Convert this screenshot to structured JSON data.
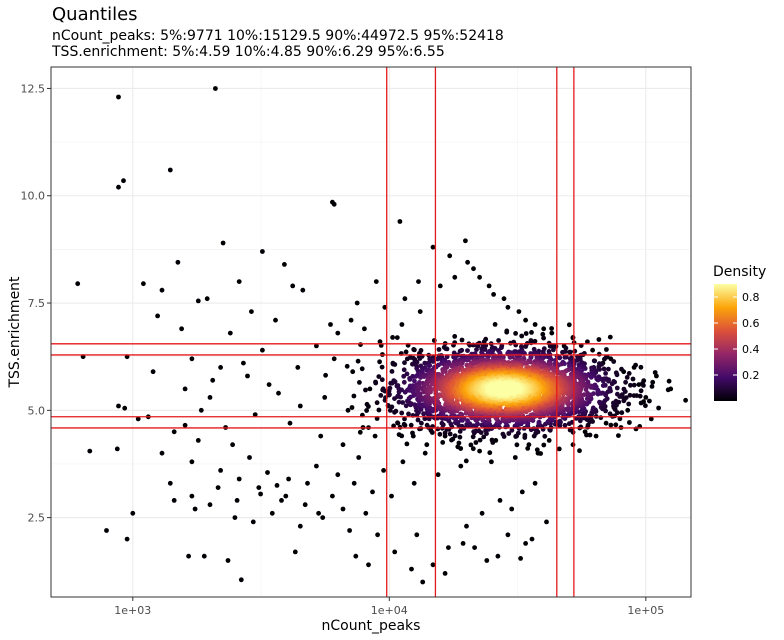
{
  "chart_data": {
    "type": "scatter",
    "title": "Quantiles",
    "subtitle_lines": [
      "nCount_peaks: 5%:9771 10%:15129.5 90%:44972.5 95%:52418",
      "TSS.enrichment: 5%:4.59 10%:4.85 90%:6.29 95%:6.55"
    ],
    "xlabel": "nCount_peaks",
    "ylabel": "TSS.enrichment",
    "x_scale": "log10",
    "x_ticks": [
      1000,
      10000,
      100000
    ],
    "x_tick_labels": [
      "1e+03",
      "1e+04",
      "1e+05"
    ],
    "xlim": [
      480,
      150000
    ],
    "y_ticks": [
      2.5,
      5.0,
      7.5,
      10.0,
      12.5
    ],
    "y_tick_labels": [
      "2.5",
      "5.0",
      "7.5",
      "10.0",
      "12.5"
    ],
    "ylim": [
      0.65,
      13.0
    ],
    "grid": true,
    "vlines": [
      9771,
      15129.5,
      44972.5,
      52418
    ],
    "hlines": [
      4.59,
      4.85,
      6.29,
      6.55
    ],
    "line_color": "#e41a1c",
    "legend": {
      "title": "Density",
      "position": "right",
      "ticks": [
        0.2,
        0.4,
        0.6,
        0.8
      ],
      "tick_labels": [
        "0.2",
        "0.4",
        "0.6",
        "0.8"
      ],
      "range": [
        0.0,
        0.9
      ],
      "colors": [
        "#000004",
        "#420a68",
        "#932667",
        "#dd513a",
        "#fca50a",
        "#fcffa4"
      ]
    },
    "points": [
      [
        880,
        12.3
      ],
      [
        2100,
        12.5
      ],
      [
        1400,
        10.6
      ],
      [
        920,
        10.35
      ],
      [
        880,
        10.2
      ],
      [
        6000,
        9.85
      ],
      [
        6100,
        9.8
      ],
      [
        11000,
        9.4
      ],
      [
        2250,
        8.9
      ],
      [
        3200,
        8.7
      ],
      [
        610,
        7.95
      ],
      [
        1100,
        7.95
      ],
      [
        1300,
        7.8
      ],
      [
        1500,
        8.45
      ],
      [
        1800,
        7.55
      ],
      [
        1950,
        7.6
      ],
      [
        2600,
        8.0
      ],
      [
        3900,
        8.4
      ],
      [
        4200,
        7.9
      ],
      [
        4600,
        7.8
      ],
      [
        2900,
        7.3
      ],
      [
        3600,
        7.1
      ],
      [
        1250,
        7.2
      ],
      [
        1550,
        6.9
      ],
      [
        2400,
        6.8
      ],
      [
        640,
        6.25
      ],
      [
        950,
        6.25
      ],
      [
        1700,
        6.2
      ],
      [
        2200,
        6.0
      ],
      [
        2800,
        5.8
      ],
      [
        3400,
        5.6
      ],
      [
        1200,
        5.9
      ],
      [
        1600,
        5.5
      ],
      [
        2000,
        5.3
      ],
      [
        1050,
        4.8
      ],
      [
        880,
        5.1
      ],
      [
        930,
        5.05
      ],
      [
        1150,
        4.85
      ],
      [
        1450,
        4.5
      ],
      [
        1800,
        4.3
      ],
      [
        2300,
        4.6
      ],
      [
        3000,
        4.9
      ],
      [
        1300,
        4.0
      ],
      [
        1700,
        3.8
      ],
      [
        2200,
        3.6
      ],
      [
        2600,
        3.4
      ],
      [
        3100,
        3.2
      ],
      [
        680,
        4.05
      ],
      [
        870,
        4.1
      ],
      [
        1000,
        2.6
      ],
      [
        790,
        2.2
      ],
      [
        950,
        2.0
      ],
      [
        1400,
        3.3
      ],
      [
        1700,
        3.0
      ],
      [
        2000,
        2.8
      ],
      [
        2500,
        2.5
      ],
      [
        1900,
        1.6
      ],
      [
        1650,
        1.6
      ],
      [
        2350,
        1.5
      ],
      [
        2650,
        1.05
      ],
      [
        4300,
        1.7
      ],
      [
        7400,
        1.6
      ],
      [
        8300,
        1.4
      ],
      [
        10500,
        1.7
      ],
      [
        12200,
        1.3
      ],
      [
        14800,
        1.4
      ],
      [
        17000,
        1.8
      ],
      [
        19400,
        1.9
      ],
      [
        21500,
        1.8
      ],
      [
        24000,
        1.5
      ],
      [
        26500,
        1.6
      ],
      [
        23000,
        2.6
      ],
      [
        27000,
        2.9
      ],
      [
        30000,
        2.7
      ],
      [
        33000,
        3.1
      ],
      [
        37000,
        3.3
      ],
      [
        41000,
        2.4
      ],
      [
        34000,
        1.9
      ],
      [
        13500,
        1.0
      ],
      [
        16500,
        1.2
      ],
      [
        7000,
        2.2
      ],
      [
        9000,
        2.1
      ],
      [
        5500,
        2.5
      ],
      [
        4500,
        2.3
      ],
      [
        3800,
        2.9
      ],
      [
        4800,
        3.3
      ],
      [
        5200,
        3.7
      ],
      [
        6300,
        3.5
      ],
      [
        7600,
        3.9
      ],
      [
        8600,
        3.1
      ],
      [
        6600,
        4.2
      ],
      [
        5400,
        4.4
      ],
      [
        4100,
        4.7
      ],
      [
        4500,
        5.1
      ],
      [
        5600,
        5.3
      ],
      [
        6900,
        5.0
      ],
      [
        7900,
        4.6
      ],
      [
        8400,
        5.5
      ],
      [
        7200,
        5.9
      ],
      [
        6100,
        6.2
      ],
      [
        5200,
        6.5
      ],
      [
        4400,
        6.0
      ],
      [
        3700,
        5.4
      ],
      [
        9200,
        6.6
      ],
      [
        8000,
        6.9
      ],
      [
        7100,
        7.1
      ],
      [
        6300,
        6.8
      ],
      [
        9600,
        7.4
      ],
      [
        11500,
        7.6
      ],
      [
        13000,
        8.0
      ],
      [
        14800,
        8.8
      ],
      [
        17200,
        8.6
      ],
      [
        19800,
        8.95
      ],
      [
        21300,
        8.3
      ],
      [
        24500,
        7.9
      ],
      [
        28000,
        7.6
      ],
      [
        32000,
        7.3
      ],
      [
        37000,
        7.0
      ],
      [
        43000,
        6.8
      ],
      [
        52000,
        6.7
      ],
      [
        62000,
        6.4
      ],
      [
        73000,
        6.2
      ],
      [
        90000,
        6.0
      ],
      [
        110000,
        5.8
      ],
      [
        125000,
        5.5
      ],
      [
        98000,
        5.2
      ],
      [
        105000,
        4.8
      ],
      [
        80000,
        4.6
      ],
      [
        64000,
        4.4
      ],
      [
        52000,
        4.2
      ],
      [
        46000,
        4.1
      ],
      [
        38000,
        4.0
      ],
      [
        31000,
        3.9
      ],
      [
        25000,
        3.8
      ],
      [
        19000,
        3.7
      ],
      [
        15500,
        3.5
      ],
      [
        12500,
        3.3
      ],
      [
        10200,
        3.0
      ],
      [
        11300,
        3.8
      ],
      [
        14000,
        4.2
      ],
      [
        16500,
        4.4
      ],
      [
        26000,
        4.3
      ],
      [
        18500,
        4.15
      ],
      [
        22500,
        4.05
      ],
      [
        35000,
        4.2
      ],
      [
        42000,
        4.3
      ],
      [
        58000,
        4.5
      ],
      [
        70000,
        4.7
      ],
      [
        85000,
        5.0
      ],
      [
        100000,
        5.3
      ],
      [
        94000,
        5.6
      ],
      [
        82000,
        5.9
      ],
      [
        68000,
        6.1
      ],
      [
        57000,
        6.3
      ],
      [
        48000,
        6.5
      ],
      [
        40000,
        6.9
      ],
      [
        34000,
        7.1
      ],
      [
        29000,
        7.4
      ],
      [
        25500,
        7.7
      ],
      [
        22500,
        8.1
      ],
      [
        20200,
        8.45
      ],
      [
        18000,
        8.1
      ],
      [
        15800,
        7.9
      ],
      [
        13200,
        7.3
      ],
      [
        11200,
        7.0
      ],
      [
        10300,
        6.7
      ],
      [
        9400,
        6.3
      ],
      [
        9900,
        5.1
      ],
      [
        10800,
        4.7
      ],
      [
        12400,
        4.4
      ],
      [
        13800,
        4.0
      ],
      [
        8800,
        4.4
      ],
      [
        9500,
        3.6
      ],
      [
        8100,
        2.6
      ],
      [
        12800,
        2.1
      ],
      [
        20000,
        2.3
      ],
      [
        29000,
        2.1
      ],
      [
        36000,
        2.0
      ],
      [
        32500,
        1.55
      ],
      [
        7500,
        7.5
      ],
      [
        8900,
        8.0
      ],
      [
        5900,
        7.0
      ],
      [
        3200,
        6.4
      ],
      [
        2700,
        6.1
      ],
      [
        2050,
        5.7
      ],
      [
        1850,
        5.0
      ],
      [
        1600,
        4.65
      ],
      [
        2450,
        4.2
      ],
      [
        2850,
        3.9
      ],
      [
        3350,
        3.55
      ],
      [
        3950,
        3.0
      ],
      [
        4700,
        2.8
      ],
      [
        5300,
        2.6
      ],
      [
        6000,
        3.0
      ],
      [
        6600,
        2.7
      ],
      [
        7300,
        3.3
      ],
      [
        4050,
        3.4
      ],
      [
        3500,
        2.6
      ],
      [
        2950,
        2.4
      ],
      [
        2550,
        2.9
      ],
      [
        2150,
        3.2
      ],
      [
        1750,
        2.7
      ],
      [
        1450,
        2.9
      ],
      [
        3150,
        3.05
      ],
      [
        3650,
        3.25
      ]
    ],
    "cloud": {
      "center": [
        28000,
        5.5
      ],
      "x_spread_log10": 0.2,
      "y_spread": 0.45,
      "n_points": 3200
    }
  }
}
